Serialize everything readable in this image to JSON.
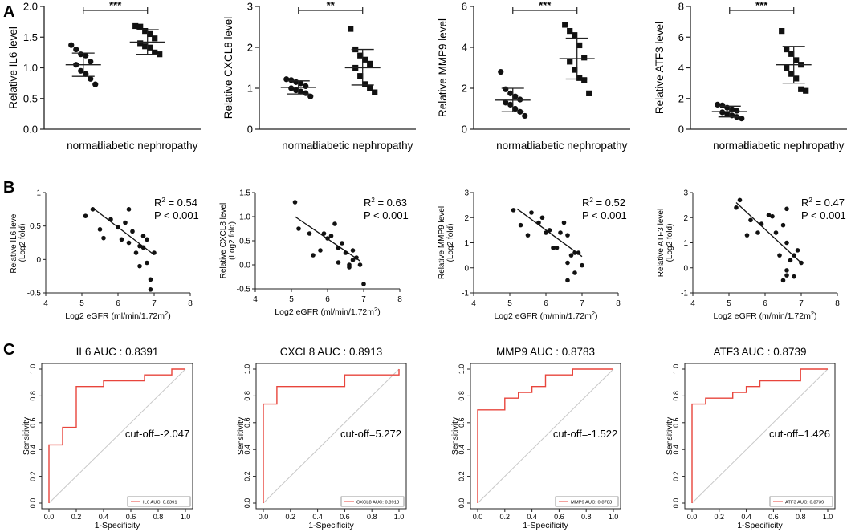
{
  "figure": {
    "panel_labels": [
      "A",
      "B",
      "C"
    ]
  },
  "chart_data": [
    {
      "panel": "A",
      "type": "scatter",
      "ylabel": "Relative IL6 level",
      "ylim": [
        0.0,
        2.0
      ],
      "yticks": [
        "0.0",
        "0.5",
        "1.0",
        "1.5",
        "2.0"
      ],
      "categories": [
        "normal",
        "diabetic nephropathy"
      ],
      "significance": "***",
      "groups": [
        {
          "name": "normal",
          "marker": "circle",
          "mean": 1.05,
          "sd_low": 0.86,
          "sd_high": 1.24,
          "values": [
            1.37,
            1.3,
            1.22,
            1.2,
            1.1,
            1.05,
            0.95,
            0.9,
            0.82,
            0.73
          ]
        },
        {
          "name": "diabetic nephropathy",
          "marker": "square",
          "mean": 1.42,
          "sd_low": 1.22,
          "sd_high": 1.62,
          "values": [
            1.68,
            1.67,
            1.6,
            1.55,
            1.48,
            1.4,
            1.35,
            1.33,
            1.25,
            1.22
          ]
        }
      ]
    },
    {
      "panel": "A",
      "type": "scatter",
      "ylabel": "Relative CXCL8 level",
      "ylim": [
        0,
        3
      ],
      "yticks": [
        "0",
        "1",
        "2",
        "3"
      ],
      "categories": [
        "normal",
        "diabetic nephropathy"
      ],
      "significance": "**",
      "groups": [
        {
          "name": "normal",
          "marker": "circle",
          "mean": 1.02,
          "sd_low": 0.86,
          "sd_high": 1.18,
          "values": [
            1.22,
            1.2,
            1.15,
            1.12,
            1.05,
            1.0,
            0.95,
            0.92,
            0.88,
            0.8
          ]
        },
        {
          "name": "diabetic nephropathy",
          "marker": "square",
          "mean": 1.5,
          "sd_low": 1.08,
          "sd_high": 1.95,
          "values": [
            2.45,
            1.95,
            1.8,
            1.7,
            1.6,
            1.5,
            1.3,
            1.1,
            1.0,
            0.9
          ]
        }
      ]
    },
    {
      "panel": "A",
      "type": "scatter",
      "ylabel": "Relative MMP9 level",
      "ylim": [
        0,
        6
      ],
      "yticks": [
        "0",
        "2",
        "4",
        "6"
      ],
      "categories": [
        "normal",
        "diabetic nephropathy"
      ],
      "significance": "***",
      "groups": [
        {
          "name": "normal",
          "marker": "circle",
          "mean": 1.42,
          "sd_low": 0.85,
          "sd_high": 2.0,
          "values": [
            2.8,
            1.95,
            1.75,
            1.6,
            1.45,
            1.3,
            1.2,
            1.0,
            0.85,
            0.65
          ]
        },
        {
          "name": "diabetic nephropathy",
          "marker": "square",
          "mean": 3.45,
          "sd_low": 2.45,
          "sd_high": 4.45,
          "values": [
            5.1,
            4.8,
            4.6,
            4.1,
            3.5,
            3.3,
            2.9,
            2.5,
            2.4,
            1.75
          ]
        }
      ]
    },
    {
      "panel": "A",
      "type": "scatter",
      "ylabel": "Relative ATF3 level",
      "ylim": [
        0,
        8
      ],
      "yticks": [
        "0",
        "2",
        "4",
        "6",
        "8"
      ],
      "categories": [
        "normal",
        "diabetic nephropathy"
      ],
      "significance": "***",
      "groups": [
        {
          "name": "normal",
          "marker": "circle",
          "mean": 1.15,
          "sd_low": 0.8,
          "sd_high": 1.5,
          "values": [
            1.6,
            1.55,
            1.4,
            1.3,
            1.2,
            1.1,
            1.0,
            0.9,
            0.8,
            0.7
          ]
        },
        {
          "name": "diabetic nephropathy",
          "marker": "square",
          "mean": 4.2,
          "sd_low": 3.0,
          "sd_high": 5.4,
          "values": [
            6.4,
            5.2,
            4.9,
            4.5,
            4.2,
            4.0,
            3.6,
            3.3,
            2.6,
            2.5
          ]
        }
      ]
    },
    {
      "panel": "B",
      "type": "scatter",
      "ylabel": "Relative IL6 level",
      "ylabel2": "(Log2 fold)",
      "xlabel": "Log2 eGFR (ml/min/1.72m",
      "xlabel_sup": "2",
      "xlabel_end": ")",
      "xlim": [
        4,
        8
      ],
      "xticks": [
        "4",
        "5",
        "6",
        "7",
        "8"
      ],
      "ylim": [
        -0.5,
        1.0
      ],
      "yticks": [
        "-0.5",
        "0",
        "0.5",
        "1"
      ],
      "r2_label": "R",
      "r2_sup": "2",
      "r2_value": " = 0.54",
      "p_text": "P < 0.001",
      "fit": {
        "x1": 5.3,
        "y1": 0.77,
        "x2": 7.0,
        "y2": 0.07
      },
      "points": [
        [
          5.1,
          0.65
        ],
        [
          5.3,
          0.75
        ],
        [
          5.5,
          0.45
        ],
        [
          5.6,
          0.32
        ],
        [
          5.8,
          0.6
        ],
        [
          6.0,
          0.48
        ],
        [
          6.1,
          0.3
        ],
        [
          6.2,
          0.55
        ],
        [
          6.3,
          0.75
        ],
        [
          6.3,
          0.25
        ],
        [
          6.4,
          0.42
        ],
        [
          6.5,
          0.1
        ],
        [
          6.6,
          0.2
        ],
        [
          6.6,
          -0.1
        ],
        [
          6.7,
          0.35
        ],
        [
          6.7,
          0.18
        ],
        [
          6.8,
          0.3
        ],
        [
          6.8,
          -0.05
        ],
        [
          6.9,
          -0.3
        ],
        [
          6.9,
          -0.45
        ],
        [
          7.0,
          0.1
        ]
      ]
    },
    {
      "panel": "B",
      "type": "scatter",
      "ylabel": "Relative CXCL8 level",
      "ylabel2": "(Log2 fold)",
      "xlabel": "Log2 eGFR (ml/min/1.72m",
      "xlabel_sup": "2",
      "xlabel_end": ")",
      "xlim": [
        4,
        8
      ],
      "xticks": [
        "4",
        "5",
        "6",
        "7",
        "8"
      ],
      "ylim": [
        -0.5,
        1.5
      ],
      "yticks": [
        "-0.5",
        "0.0",
        "0.5",
        "1.0",
        "1.5"
      ],
      "r2_label": "R",
      "r2_sup": "2",
      "r2_value": " = 0.63",
      "p_text": "P < 0.001",
      "fit": {
        "x1": 5.1,
        "y1": 1.0,
        "x2": 6.9,
        "y2": 0.08
      },
      "points": [
        [
          5.1,
          1.3
        ],
        [
          5.2,
          0.75
        ],
        [
          5.5,
          0.65
        ],
        [
          5.6,
          0.2
        ],
        [
          5.8,
          0.3
        ],
        [
          5.9,
          0.65
        ],
        [
          6.0,
          0.55
        ],
        [
          6.1,
          0.6
        ],
        [
          6.2,
          0.85
        ],
        [
          6.3,
          0.35
        ],
        [
          6.3,
          0.05
        ],
        [
          6.4,
          0.45
        ],
        [
          6.5,
          0.25
        ],
        [
          6.6,
          0.0
        ],
        [
          6.6,
          -0.05
        ],
        [
          6.7,
          0.1
        ],
        [
          6.7,
          0.3
        ],
        [
          6.8,
          0.15
        ],
        [
          6.9,
          0.0
        ],
        [
          7.0,
          -0.4
        ]
      ]
    },
    {
      "panel": "B",
      "type": "scatter",
      "ylabel": "Relative MMP9 level",
      "ylabel2": "(Log2 fold)",
      "xlabel": "Log2 eGFR (m/min/1.72m",
      "xlabel_sup": "2",
      "xlabel_end": ")",
      "xlim": [
        4,
        8
      ],
      "xticks": [
        "4",
        "5",
        "6",
        "7",
        "8"
      ],
      "ylim": [
        -1,
        3
      ],
      "yticks": [
        "-1",
        "0",
        "1",
        "2",
        "3"
      ],
      "r2_label": "R",
      "r2_sup": "2",
      "r2_value": " = 0.52",
      "p_text": "P < 0.001",
      "fit": {
        "x1": 5.2,
        "y1": 2.35,
        "x2": 7.0,
        "y2": 0.45
      },
      "points": [
        [
          5.1,
          2.3
        ],
        [
          5.3,
          1.7
        ],
        [
          5.5,
          1.3
        ],
        [
          5.6,
          2.2
        ],
        [
          5.8,
          1.8
        ],
        [
          5.9,
          2.0
        ],
        [
          6.0,
          1.4
        ],
        [
          6.1,
          1.5
        ],
        [
          6.2,
          0.8
        ],
        [
          6.3,
          0.8
        ],
        [
          6.4,
          1.4
        ],
        [
          6.5,
          1.8
        ],
        [
          6.6,
          1.3
        ],
        [
          6.6,
          0.2
        ],
        [
          6.6,
          -0.5
        ],
        [
          6.7,
          0.5
        ],
        [
          6.8,
          -0.2
        ],
        [
          6.8,
          0.6
        ],
        [
          6.9,
          0.6
        ],
        [
          7.0,
          0.1
        ]
      ]
    },
    {
      "panel": "B",
      "type": "scatter",
      "ylabel": "Relative ATF3 level",
      "ylabel2": "(Log2 fold)",
      "xlabel": "Log2 eGFR (m/min/1.72m",
      "xlabel_sup": "2",
      "xlabel_end": ")",
      "xlim": [
        4,
        8
      ],
      "xticks": [
        "4",
        "5",
        "6",
        "7",
        "8"
      ],
      "ylim": [
        -1,
        3
      ],
      "yticks": [
        "-1",
        "0",
        "1",
        "2",
        "3"
      ],
      "r2_label": "R",
      "r2_sup": "2",
      "r2_value": " = 0.47",
      "p_text": "P < 0.001",
      "fit": {
        "x1": 5.2,
        "y1": 2.6,
        "x2": 7.0,
        "y2": 0.2
      },
      "points": [
        [
          5.2,
          2.4
        ],
        [
          5.3,
          2.7
        ],
        [
          5.5,
          1.3
        ],
        [
          5.6,
          1.9
        ],
        [
          5.8,
          1.4
        ],
        [
          5.9,
          1.75
        ],
        [
          6.1,
          2.1
        ],
        [
          6.2,
          2.05
        ],
        [
          6.3,
          1.4
        ],
        [
          6.4,
          0.5
        ],
        [
          6.5,
          1.7
        ],
        [
          6.6,
          1.0
        ],
        [
          6.6,
          -0.1
        ],
        [
          6.5,
          -0.5
        ],
        [
          6.7,
          0.3
        ],
        [
          6.6,
          -0.3
        ],
        [
          6.8,
          -0.35
        ],
        [
          6.8,
          0.5
        ],
        [
          6.9,
          0.7
        ],
        [
          7.0,
          0.2
        ],
        [
          6.6,
          2.35
        ]
      ]
    },
    {
      "panel": "C",
      "type": "line",
      "title": "IL6  AUC : 0.8391",
      "xlabel": "1-Specificity",
      "ylabel": "Sensitivity",
      "xticks": [
        "0.0",
        "0.2",
        "0.4",
        "0.6",
        "0.8",
        "1.0"
      ],
      "yticks": [
        "0.0",
        "0.2",
        "0.4",
        "0.6",
        "0.8",
        "1.0"
      ],
      "cutoff": "cut-off=-2.047",
      "legend": "IL6 AUC: 0.8391",
      "legend_position": "bottom-right",
      "curve_color": "#e8453c",
      "diagonal_color": "#c8c8c8",
      "roc": [
        [
          0,
          0
        ],
        [
          0,
          0.435
        ],
        [
          0.1,
          0.435
        ],
        [
          0.1,
          0.565
        ],
        [
          0.2,
          0.565
        ],
        [
          0.2,
          0.87
        ],
        [
          0.4,
          0.87
        ],
        [
          0.4,
          0.913
        ],
        [
          0.7,
          0.913
        ],
        [
          0.7,
          0.957
        ],
        [
          0.9,
          0.957
        ],
        [
          0.9,
          1.0
        ],
        [
          1.0,
          1.0
        ]
      ]
    },
    {
      "panel": "C",
      "type": "line",
      "title": "CXCL8 AUC : 0.8913",
      "xlabel": "1-Specificity",
      "ylabel": "Sensitivity",
      "xticks": [
        "0.0",
        "0.2",
        "0.4",
        "0.6",
        "0.8",
        "1.0"
      ],
      "yticks": [
        "0.0",
        "0.2",
        "0.4",
        "0.6",
        "0.8",
        "1.0"
      ],
      "cutoff": "cut-off=5.272",
      "legend": "CXCL8 AUC: 0.8913",
      "legend_position": "bottom-right",
      "curve_color": "#e8453c",
      "diagonal_color": "#c8c8c8",
      "roc": [
        [
          0,
          0
        ],
        [
          0,
          0.739
        ],
        [
          0.1,
          0.739
        ],
        [
          0.1,
          0.87
        ],
        [
          0.6,
          0.87
        ],
        [
          0.6,
          0.957
        ],
        [
          1.0,
          0.957
        ],
        [
          1.0,
          1.0
        ]
      ]
    },
    {
      "panel": "C",
      "type": "line",
      "title": "MMP9 AUC : 0.8783",
      "xlabel": "1-Specificity",
      "ylabel": "Sensitivity",
      "xticks": [
        "0.0",
        "0.2",
        "0.4",
        "0.6",
        "0.8",
        "1.0"
      ],
      "yticks": [
        "0.0",
        "0.2",
        "0.4",
        "0.6",
        "0.8",
        "1.0"
      ],
      "cutoff": "cut-off=-1.522",
      "legend": "MMP9 AUC: 0.8783",
      "legend_position": "bottom-right",
      "curve_color": "#e8453c",
      "diagonal_color": "#c8c8c8",
      "roc": [
        [
          0,
          0
        ],
        [
          0,
          0.696
        ],
        [
          0.2,
          0.696
        ],
        [
          0.2,
          0.783
        ],
        [
          0.3,
          0.783
        ],
        [
          0.3,
          0.826
        ],
        [
          0.4,
          0.826
        ],
        [
          0.4,
          0.87
        ],
        [
          0.5,
          0.87
        ],
        [
          0.5,
          0.957
        ],
        [
          0.7,
          0.957
        ],
        [
          0.7,
          1.0
        ],
        [
          1.0,
          1.0
        ]
      ]
    },
    {
      "panel": "C",
      "type": "line",
      "title": "ATF3 AUC : 0.8739",
      "xlabel": "1-Specificity",
      "ylabel": "Sensitivity",
      "xticks": [
        "0.0",
        "0.2",
        "0.4",
        "0.6",
        "0.8",
        "1.0"
      ],
      "yticks": [
        "0.0",
        "0.2",
        "0.4",
        "0.6",
        "0.8",
        "1.0"
      ],
      "cutoff": "cut-off=1.426",
      "legend": "ATF3 AUC: 0.8739",
      "legend_position": "bottom-right",
      "curve_color": "#e8453c",
      "diagonal_color": "#c8c8c8",
      "roc": [
        [
          0,
          0
        ],
        [
          0,
          0.739
        ],
        [
          0.1,
          0.739
        ],
        [
          0.1,
          0.783
        ],
        [
          0.3,
          0.783
        ],
        [
          0.3,
          0.826
        ],
        [
          0.4,
          0.826
        ],
        [
          0.4,
          0.87
        ],
        [
          0.5,
          0.87
        ],
        [
          0.5,
          0.913
        ],
        [
          0.8,
          0.913
        ],
        [
          0.8,
          1.0
        ],
        [
          1.0,
          1.0
        ]
      ]
    }
  ]
}
